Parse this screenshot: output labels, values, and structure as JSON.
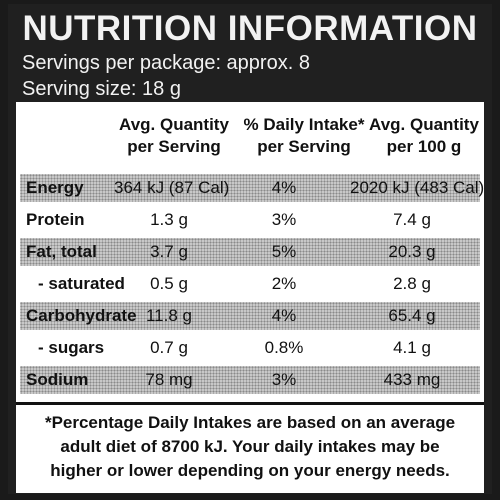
{
  "title": "NUTRITION INFORMATION",
  "servings_per_package": "Servings per package: approx. 8",
  "serving_size": "Serving size: 18 g",
  "columns": {
    "per_serving": [
      "Avg. Quantity",
      "per Serving"
    ],
    "daily_intake": [
      "% Daily Intake*",
      "per Serving"
    ],
    "per_100g": [
      "Avg. Quantity",
      "per 100 g"
    ]
  },
  "rows": [
    {
      "label": "Energy",
      "per_serving": "364 kJ (87 Cal)",
      "daily_intake": "4%",
      "per_100g": "2020 kJ (483 Cal)"
    },
    {
      "label": "Protein",
      "per_serving": "1.3 g",
      "daily_intake": "3%",
      "per_100g": "7.4 g"
    },
    {
      "label": "Fat, total",
      "per_serving": "3.7 g",
      "daily_intake": "5%",
      "per_100g": "20.3 g"
    },
    {
      "label": "- saturated",
      "per_serving": "0.5 g",
      "daily_intake": "2%",
      "per_100g": "2.8 g"
    },
    {
      "label": "Carbohydrate",
      "per_serving": "11.8 g",
      "daily_intake": "4%",
      "per_100g": "65.4 g"
    },
    {
      "label": "- sugars",
      "per_serving": "0.7 g",
      "daily_intake": "0.8%",
      "per_100g": "4.1 g"
    },
    {
      "label": "Sodium",
      "per_serving": "78 mg",
      "daily_intake": "3%",
      "per_100g": "433 mg"
    }
  ],
  "footnote": [
    "*Percentage Daily Intakes are based on an average",
    "adult diet of 8700 kJ. Your daily intakes may be",
    "higher or lower depending on your energy needs."
  ]
}
